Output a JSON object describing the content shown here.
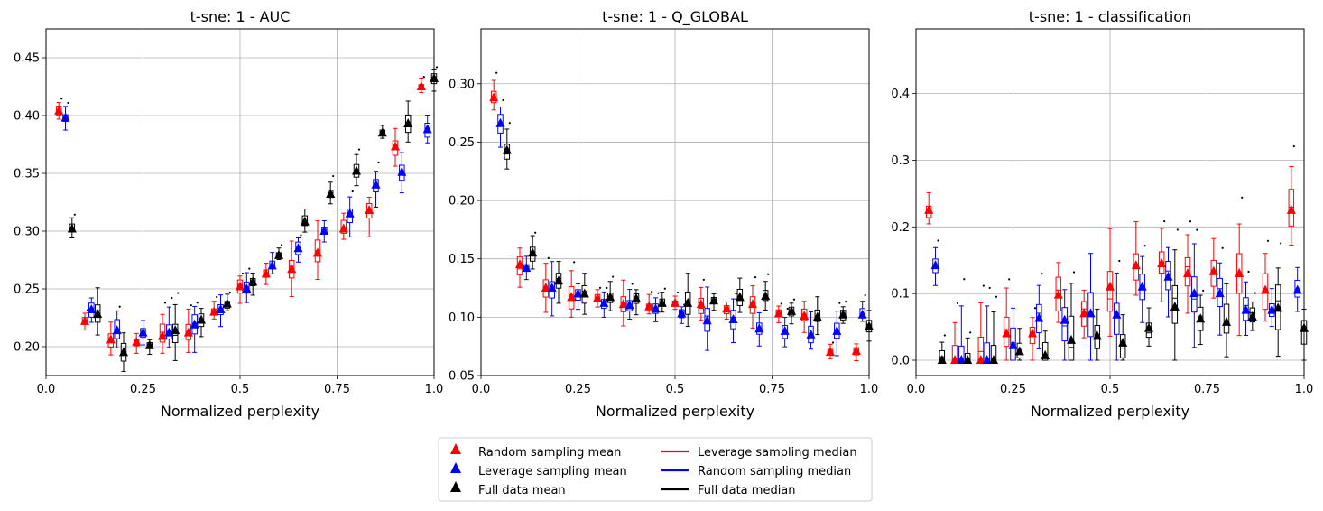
{
  "legend": {
    "entries": [
      {
        "label": "Random sampling mean",
        "kind": "marker",
        "color": "#ff0000"
      },
      {
        "label": "Leverage sampling mean",
        "kind": "marker",
        "color": "#0000ff"
      },
      {
        "label": "Full data mean",
        "kind": "marker",
        "color": "#000000"
      },
      {
        "label": "Leverage sampling median",
        "kind": "line",
        "color": "#ff0000"
      },
      {
        "label": "Random sampling median",
        "kind": "line",
        "color": "#0000ff"
      },
      {
        "label": "Full data median",
        "kind": "line",
        "color": "#000000"
      }
    ]
  },
  "colors": {
    "red": "#ff0000",
    "blue": "#0000ff",
    "black": "#000000",
    "grid": "#b0b0b0"
  },
  "chart_data": [
    {
      "type": "box",
      "title": "t-sne: 1 - AUC",
      "xlabel": "Normalized perplexity",
      "ylabel": "",
      "xlim": [
        0,
        1
      ],
      "ylim": [
        0.175,
        0.475
      ],
      "xticks": [
        0,
        0.25,
        0.5,
        0.75,
        1
      ],
      "xtick_labels": [
        "0.0",
        "0.25",
        "0.5",
        "0.75",
        "1.0"
      ],
      "yticks": [
        0.2,
        0.25,
        0.3,
        0.35,
        0.4,
        0.45
      ],
      "ytick_labels": [
        "0.20",
        "0.25",
        "0.30",
        "0.35",
        "0.40",
        "0.45"
      ],
      "series": [
        {
          "name": "Random sampling",
          "color": "#ff0000",
          "x": [
            0.033,
            0.1,
            0.167,
            0.233,
            0.3,
            0.367,
            0.433,
            0.5,
            0.567,
            0.633,
            0.7,
            0.767,
            0.833,
            0.9,
            0.967
          ],
          "mean": [
            0.404,
            0.222,
            0.206,
            0.204,
            0.209,
            0.212,
            0.23,
            0.252,
            0.263,
            0.267,
            0.281,
            0.302,
            0.318,
            0.373,
            0.425
          ]
        },
        {
          "name": "Leverage sampling",
          "color": "#0000ff",
          "x": [
            0.05,
            0.117,
            0.183,
            0.25,
            0.317,
            0.383,
            0.45,
            0.517,
            0.583,
            0.65,
            0.717,
            0.783,
            0.85,
            0.917,
            0.983
          ],
          "mean": [
            0.398,
            0.232,
            0.214,
            0.212,
            0.212,
            0.219,
            0.232,
            0.25,
            0.27,
            0.285,
            0.3,
            0.315,
            0.34,
            0.351,
            0.388
          ]
        },
        {
          "name": "Full data",
          "color": "#000000",
          "x": [
            0.067,
            0.133,
            0.2,
            0.267,
            0.333,
            0.4,
            0.467,
            0.533,
            0.6,
            0.667,
            0.733,
            0.8,
            0.867,
            0.933,
            1.0
          ],
          "mean": [
            0.302,
            0.228,
            0.195,
            0.201,
            0.214,
            0.223,
            0.237,
            0.256,
            0.279,
            0.308,
            0.332,
            0.352,
            0.385,
            0.393,
            0.432
          ]
        }
      ]
    },
    {
      "type": "box",
      "title": "t-sne: 1 - Q_GLOBAL",
      "xlabel": "Normalized perplexity",
      "ylabel": "",
      "xlim": [
        0,
        1
      ],
      "ylim": [
        0.05,
        0.347
      ],
      "xticks": [
        0,
        0.25,
        0.5,
        0.75,
        1
      ],
      "xtick_labels": [
        "0.0",
        "0.25",
        "0.5",
        "0.75",
        "1.0"
      ],
      "yticks": [
        0.05,
        0.1,
        0.15,
        0.2,
        0.25,
        0.3
      ],
      "ytick_labels": [
        "0.05",
        "0.10",
        "0.15",
        "0.20",
        "0.25",
        "0.30"
      ],
      "series": [
        {
          "name": "Random sampling",
          "color": "#ff0000",
          "x": [
            0.033,
            0.1,
            0.167,
            0.233,
            0.3,
            0.367,
            0.433,
            0.5,
            0.567,
            0.633,
            0.7,
            0.767,
            0.833,
            0.9,
            0.967
          ],
          "mean": [
            0.288,
            0.145,
            0.125,
            0.117,
            0.116,
            0.111,
            0.109,
            0.112,
            0.111,
            0.107,
            0.111,
            0.103,
            0.101,
            0.07,
            0.071
          ]
        },
        {
          "name": "Leverage sampling",
          "color": "#0000ff",
          "x": [
            0.05,
            0.117,
            0.183,
            0.25,
            0.317,
            0.383,
            0.45,
            0.517,
            0.583,
            0.65,
            0.717,
            0.783,
            0.85,
            0.917,
            0.983
          ],
          "mean": [
            0.266,
            0.142,
            0.125,
            0.12,
            0.112,
            0.11,
            0.107,
            0.103,
            0.097,
            0.098,
            0.09,
            0.088,
            0.085,
            0.088,
            0.102
          ]
        },
        {
          "name": "Full data",
          "color": "#000000",
          "x": [
            0.067,
            0.133,
            0.2,
            0.267,
            0.333,
            0.4,
            0.467,
            0.533,
            0.6,
            0.667,
            0.733,
            0.8,
            0.867,
            0.933,
            1.0
          ],
          "mean": [
            0.243,
            0.155,
            0.131,
            0.12,
            0.117,
            0.116,
            0.112,
            0.112,
            0.114,
            0.117,
            0.118,
            0.105,
            0.1,
            0.102,
            0.092
          ]
        }
      ]
    },
    {
      "type": "box",
      "title": "t-sne: 1 - classification",
      "xlabel": "Normalized perplexity",
      "ylabel": "",
      "xlim": [
        0,
        1
      ],
      "ylim": [
        -0.023,
        0.497
      ],
      "xticks": [
        0,
        0.25,
        0.5,
        0.75,
        1
      ],
      "xtick_labels": [
        "0.0",
        "0.25",
        "0.5",
        "0.75",
        "1.0"
      ],
      "yticks": [
        0,
        0.1,
        0.2,
        0.3,
        0.4
      ],
      "ytick_labels": [
        "0.0",
        "0.1",
        "0.2",
        "0.3",
        "0.4"
      ],
      "series": [
        {
          "name": "Random sampling",
          "color": "#ff0000",
          "x": [
            0.033,
            0.1,
            0.167,
            0.233,
            0.3,
            0.367,
            0.433,
            0.5,
            0.567,
            0.633,
            0.7,
            0.767,
            0.833,
            0.9,
            0.967
          ],
          "mean": [
            0.225,
            0.0,
            0.0,
            0.04,
            0.04,
            0.098,
            0.07,
            0.11,
            0.142,
            0.145,
            0.13,
            0.133,
            0.13,
            0.105,
            0.225
          ]
        },
        {
          "name": "Leverage sampling",
          "color": "#0000ff",
          "x": [
            0.05,
            0.117,
            0.183,
            0.25,
            0.317,
            0.383,
            0.45,
            0.517,
            0.583,
            0.65,
            0.717,
            0.783,
            0.85,
            0.917,
            0.983
          ],
          "mean": [
            0.142,
            0.0,
            0.0,
            0.022,
            0.063,
            0.06,
            0.07,
            0.068,
            0.11,
            0.125,
            0.1,
            0.1,
            0.075,
            0.075,
            0.105
          ]
        },
        {
          "name": "Full data",
          "color": "#000000",
          "x": [
            0.067,
            0.133,
            0.2,
            0.267,
            0.333,
            0.4,
            0.467,
            0.533,
            0.6,
            0.667,
            0.733,
            0.8,
            0.867,
            0.933,
            1.0
          ],
          "mean": [
            0.0,
            0.0,
            0.0,
            0.013,
            0.007,
            0.03,
            0.036,
            0.026,
            0.048,
            0.08,
            0.062,
            0.057,
            0.065,
            0.078,
            0.048
          ]
        }
      ]
    }
  ]
}
